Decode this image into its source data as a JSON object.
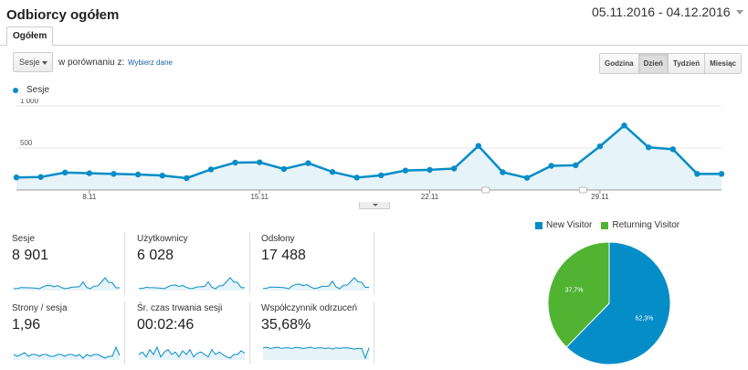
{
  "header": {
    "title": "Odbiorcy ogółem",
    "date_range": "05.11.2016 - 04.12.2016"
  },
  "tabs": [
    {
      "label": "Ogółem"
    }
  ],
  "controls": {
    "metric": "Sesje",
    "compare_text": "w porównaniu z:",
    "compare_link": "Wybierz dane",
    "granularity": [
      "Godzina",
      "Dzień",
      "Tydzień",
      "Miesiąc"
    ],
    "granularity_selected": "Dzień"
  },
  "colors": {
    "series": "#058dc7",
    "fill": "#e6f3f8",
    "new_visitor": "#058dc7",
    "returning_visitor": "#50b432"
  },
  "chart_data": [
    {
      "type": "area",
      "title": "",
      "series": [
        {
          "name": "Sesje",
          "values": [
            150,
            155,
            208,
            200,
            192,
            185,
            172,
            142,
            245,
            326,
            330,
            250,
            320,
            215,
            148,
            175,
            232,
            240,
            256,
            525,
            212,
            145,
            288,
            295,
            520,
            768,
            508,
            485,
            192,
            192
          ]
        }
      ],
      "x_tick_labels": [
        {
          "index": 3,
          "label": "8.11"
        },
        {
          "index": 10,
          "label": "15.11"
        },
        {
          "index": 17,
          "label": "22.11"
        },
        {
          "index": 24,
          "label": "29.11"
        }
      ],
      "y_tick_labels": [
        "500",
        "1 000"
      ],
      "ylim": [
        0,
        1000
      ],
      "grid": true
    },
    {
      "type": "pie",
      "slices": [
        {
          "label": "New Visitor",
          "value": 62.3,
          "display": "62,3%"
        },
        {
          "label": "Returning Visitor",
          "value": 37.7,
          "display": "37,7%"
        }
      ]
    }
  ],
  "metrics": [
    {
      "label": "Sesje",
      "value": "8 901",
      "spark": [
        150,
        155,
        208,
        200,
        192,
        185,
        172,
        142,
        245,
        326,
        330,
        250,
        320,
        215,
        148,
        175,
        232,
        240,
        256,
        525,
        212,
        145,
        288,
        295,
        520,
        768,
        508,
        485,
        192,
        192
      ]
    },
    {
      "label": "Użytkownicy",
      "value": "6 028",
      "spark": [
        110,
        115,
        150,
        140,
        138,
        130,
        125,
        105,
        170,
        220,
        226,
        180,
        215,
        150,
        108,
        125,
        165,
        170,
        180,
        330,
        150,
        105,
        200,
        205,
        340,
        470,
        330,
        315,
        140,
        140
      ]
    },
    {
      "label": "Odsłony",
      "value": "17 488",
      "spark": [
        300,
        310,
        390,
        380,
        370,
        360,
        340,
        280,
        450,
        560,
        570,
        470,
        540,
        400,
        290,
        330,
        420,
        430,
        450,
        760,
        390,
        280,
        500,
        510,
        740,
        980,
        720,
        690,
        370,
        370
      ]
    },
    {
      "label": "Strony / sesja",
      "value": "1,96",
      "spark": [
        2.0,
        1.9,
        2.0,
        2.1,
        1.9,
        2.0,
        2.0,
        1.9,
        2.0,
        2.0,
        1.9,
        1.9,
        2.0,
        2.0,
        1.9,
        2.0,
        2.0,
        1.9,
        2.0,
        1.8,
        2.0,
        1.9,
        2.0,
        2.0,
        1.9,
        1.8,
        1.9,
        1.9,
        2.4,
        1.95
      ]
    },
    {
      "label": "Śr. czas trwania sesji",
      "value": "00:02:46",
      "spark": [
        160,
        170,
        150,
        180,
        160,
        190,
        150,
        170,
        180,
        160,
        170,
        150,
        175,
        160,
        180,
        150,
        165,
        170,
        160,
        150,
        180,
        160,
        170,
        160,
        150,
        145,
        160,
        160,
        175,
        165
      ]
    },
    {
      "label": "Współczynnik odrzuceń",
      "value": "35,68%",
      "spark": [
        36,
        37,
        35,
        36,
        37,
        35,
        36,
        36,
        35,
        37,
        36,
        35,
        36,
        37,
        35,
        36,
        36,
        35,
        36,
        34,
        36,
        35,
        36,
        36,
        35,
        34,
        35,
        35,
        20,
        36
      ]
    }
  ]
}
